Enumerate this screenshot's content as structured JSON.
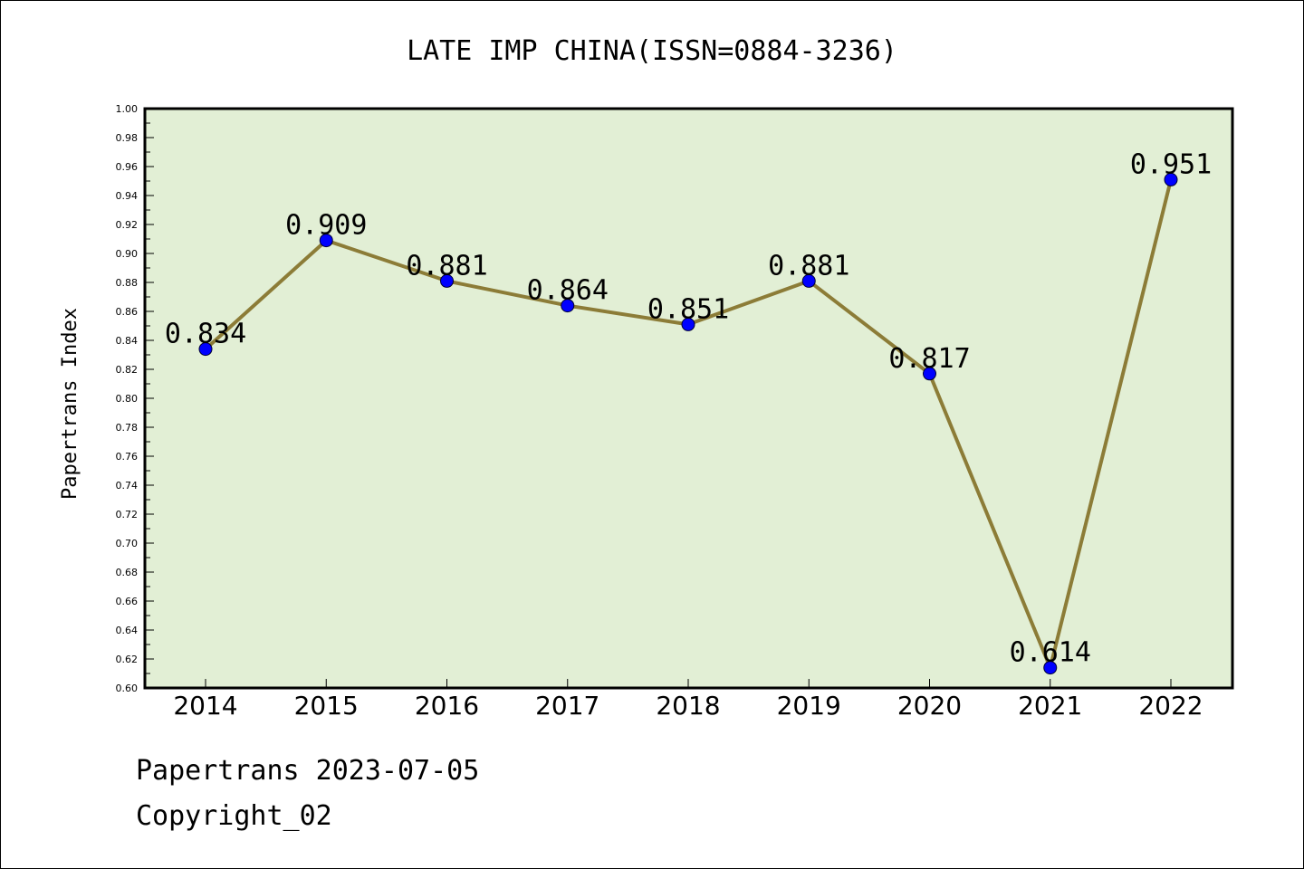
{
  "chart_data": {
    "type": "line",
    "title": "LATE IMP CHINA(ISSN=0884-3236)",
    "xlabel": "",
    "ylabel": "Papertrans Index",
    "categories": [
      "2014",
      "2015",
      "2016",
      "2017",
      "2018",
      "2019",
      "2020",
      "2021",
      "2022"
    ],
    "values": [
      0.834,
      0.909,
      0.881,
      0.864,
      0.851,
      0.881,
      0.817,
      0.614,
      0.951
    ],
    "data_labels": [
      "0.834",
      "0.909",
      "0.881",
      "0.864",
      "0.851",
      "0.881",
      "0.817",
      "0.614",
      "0.951"
    ],
    "ylim": [
      0.6,
      1.0
    ],
    "yticks": [
      "0.60",
      "0.62",
      "0.64",
      "0.66",
      "0.68",
      "0.70",
      "0.72",
      "0.74",
      "0.76",
      "0.78",
      "0.80",
      "0.82",
      "0.84",
      "0.86",
      "0.88",
      "0.90",
      "0.92",
      "0.94",
      "0.96",
      "0.98",
      "1.00"
    ],
    "grid": false,
    "legend": "none",
    "colors": {
      "plot_background": "#e2efd5",
      "line": "#8c7c37",
      "marker": "#0000ff"
    }
  },
  "footer": {
    "date": "Papertrans 2023-07-05",
    "copyright": "Copyright_02"
  }
}
